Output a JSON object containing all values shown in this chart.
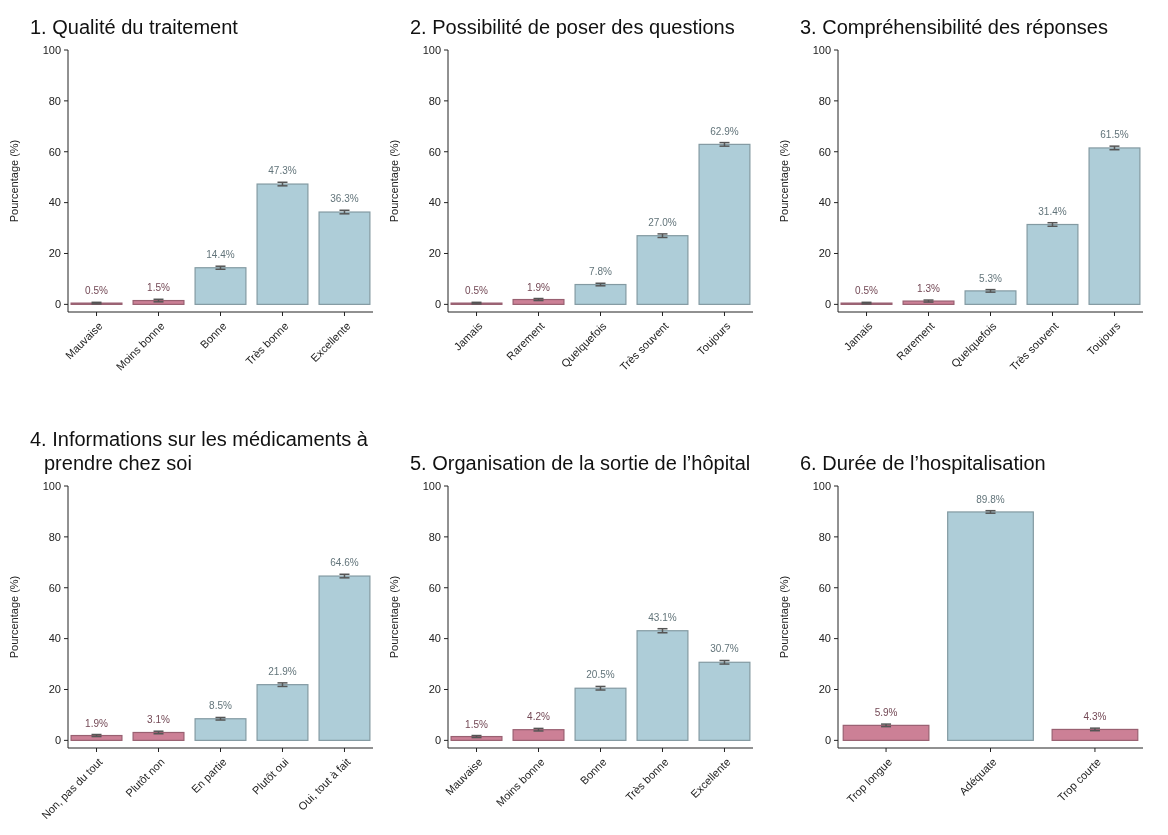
{
  "chart_data": [
    {
      "type": "bar",
      "title": "1. Qualité du traitement",
      "ylabel": "Pourcentage (%)",
      "categories": [
        "Mauvaise",
        "Moins bonne",
        "Bonne",
        "Très bonne",
        "Excellente"
      ],
      "values": [
        0.5,
        1.5,
        14.4,
        47.3,
        36.3
      ],
      "errors": [
        0.3,
        0.5,
        0.6,
        0.7,
        0.7
      ],
      "value_labels": [
        "0.5%",
        "1.5%",
        "14.4%",
        "47.3%",
        "36.3%"
      ],
      "colors": [
        "#cc8096",
        "#cc8096",
        "#aecdd8",
        "#aecdd8",
        "#aecdd8"
      ],
      "ylim": [
        -3,
        100
      ],
      "yticks": [
        0,
        20,
        40,
        60,
        80,
        100
      ]
    },
    {
      "type": "bar",
      "title": "2. Possibilité de poser des questions",
      "ylabel": "Pourcentage (%)",
      "categories": [
        "Jamais",
        "Rarement",
        "Quelquefois",
        "Très souvent",
        "Toujours"
      ],
      "values": [
        0.5,
        1.9,
        7.8,
        27.0,
        62.9
      ],
      "errors": [
        0.3,
        0.4,
        0.5,
        0.7,
        0.7
      ],
      "value_labels": [
        "0.5%",
        "1.9%",
        "7.8%",
        "27.0%",
        "62.9%"
      ],
      "colors": [
        "#cc8096",
        "#cc8096",
        "#aecdd8",
        "#aecdd8",
        "#aecdd8"
      ],
      "ylim": [
        -3,
        100
      ],
      "yticks": [
        0,
        20,
        40,
        60,
        80,
        100
      ]
    },
    {
      "type": "bar",
      "title": "3. Compréhensibilité des réponses",
      "ylabel": "Pourcentage (%)",
      "categories": [
        "Jamais",
        "Rarement",
        "Quelquefois",
        "Très souvent",
        "Toujours"
      ],
      "values": [
        0.5,
        1.3,
        5.3,
        31.4,
        61.5
      ],
      "errors": [
        0.3,
        0.4,
        0.5,
        0.7,
        0.7
      ],
      "value_labels": [
        "0.5%",
        "1.3%",
        "5.3%",
        "31.4%",
        "61.5%"
      ],
      "colors": [
        "#cc8096",
        "#cc8096",
        "#aecdd8",
        "#aecdd8",
        "#aecdd8"
      ],
      "ylim": [
        -3,
        100
      ],
      "yticks": [
        0,
        20,
        40,
        60,
        80,
        100
      ]
    },
    {
      "type": "bar",
      "title": "4. Informations sur les médicaments à prendre chez soi",
      "ylabel": "Pourcentage (%)",
      "categories": [
        "Non, pas du tout",
        "Plutôt non",
        "En partie",
        "Plutôt oui",
        "Oui, tout à fait"
      ],
      "values": [
        1.9,
        3.1,
        8.5,
        21.9,
        64.6
      ],
      "errors": [
        0.4,
        0.5,
        0.5,
        0.7,
        0.7
      ],
      "value_labels": [
        "1.9%",
        "3.1%",
        "8.5%",
        "21.9%",
        "64.6%"
      ],
      "colors": [
        "#cc8096",
        "#cc8096",
        "#aecdd8",
        "#aecdd8",
        "#aecdd8"
      ],
      "ylim": [
        -3,
        100
      ],
      "yticks": [
        0,
        20,
        40,
        60,
        80,
        100
      ]
    },
    {
      "type": "bar",
      "title": "5. Organisation de la sortie de l’hôpital",
      "ylabel": "Pourcentage (%)",
      "categories": [
        "Mauvaise",
        "Moins bonne",
        "Bonne",
        "Très bonne",
        "Excellente"
      ],
      "values": [
        1.5,
        4.2,
        20.5,
        43.1,
        30.7
      ],
      "errors": [
        0.4,
        0.5,
        0.7,
        0.8,
        0.7
      ],
      "value_labels": [
        "1.5%",
        "4.2%",
        "20.5%",
        "43.1%",
        "30.7%"
      ],
      "colors": [
        "#cc8096",
        "#cc8096",
        "#aecdd8",
        "#aecdd8",
        "#aecdd8"
      ],
      "ylim": [
        -3,
        100
      ],
      "yticks": [
        0,
        20,
        40,
        60,
        80,
        100
      ]
    },
    {
      "type": "bar",
      "title": "6. Durée de l’hospitalisation",
      "ylabel": "Pourcentage (%)",
      "categories": [
        "Trop longue",
        "Adéquate",
        "Trop courte"
      ],
      "values": [
        5.9,
        89.8,
        4.3
      ],
      "errors": [
        0.5,
        0.5,
        0.5
      ],
      "value_labels": [
        "5.9%",
        "89.8%",
        "4.3%"
      ],
      "colors": [
        "#cc8096",
        "#aecdd8",
        "#cc8096"
      ],
      "ylim": [
        -3,
        100
      ],
      "yticks": [
        0,
        20,
        40,
        60,
        80,
        100
      ]
    }
  ]
}
